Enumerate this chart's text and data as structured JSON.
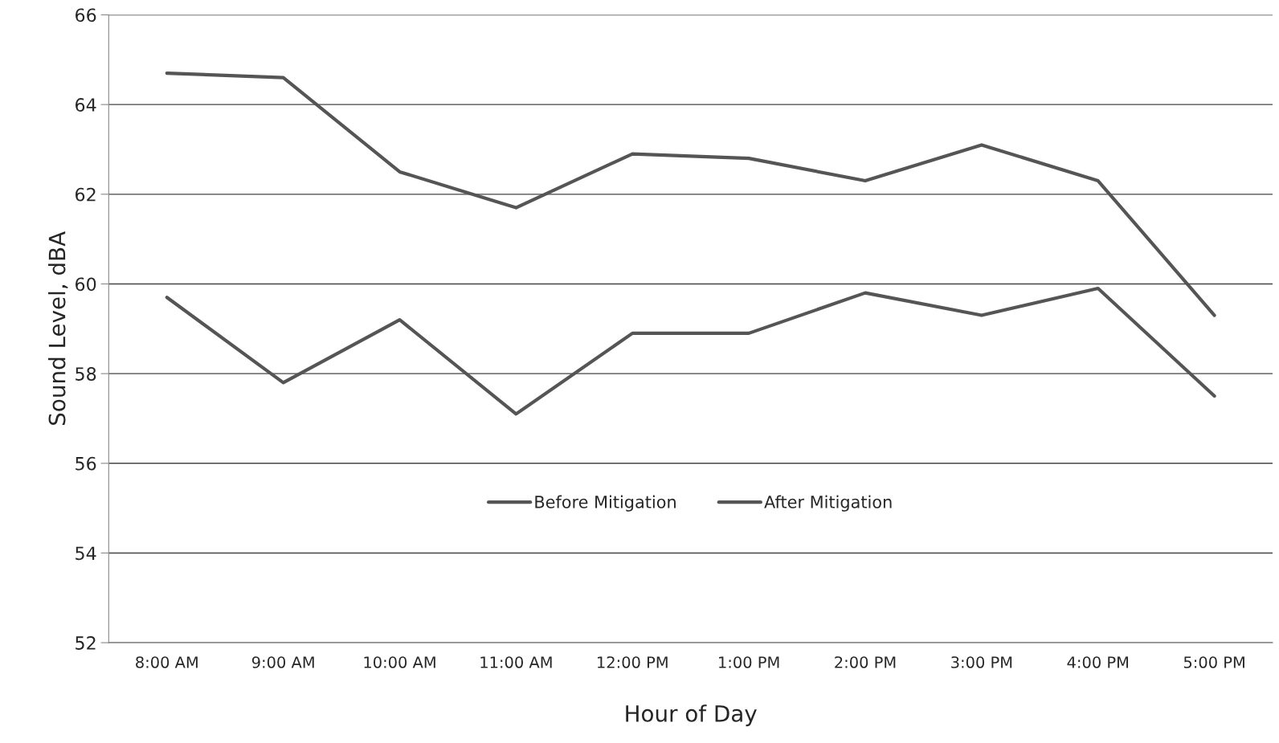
{
  "chart_data": {
    "type": "line",
    "xlabel": "Hour of Day",
    "ylabel": "Sound Level, dBA",
    "categories": [
      "8:00 AM",
      "9:00 AM",
      "10:00 AM",
      "11:00 AM",
      "12:00 PM",
      "1:00 PM",
      "2:00 PM",
      "3:00 PM",
      "4:00 PM",
      "5:00 PM"
    ],
    "series": [
      {
        "name": "Before Mitigation",
        "color": "#555555",
        "values": [
          64.7,
          64.6,
          62.5,
          61.7,
          62.9,
          62.8,
          62.3,
          63.1,
          62.3,
          59.3
        ]
      },
      {
        "name": "After Mitigation",
        "color": "#555555",
        "values": [
          59.7,
          57.8,
          59.2,
          57.1,
          58.9,
          58.9,
          59.8,
          59.3,
          59.9,
          57.5
        ]
      }
    ],
    "ylim": [
      52,
      66
    ],
    "yticks": [
      52,
      54,
      56,
      58,
      60,
      62,
      64,
      66
    ],
    "grid": "y",
    "legend": "bottom",
    "marker": "none",
    "line_style": "solid"
  }
}
